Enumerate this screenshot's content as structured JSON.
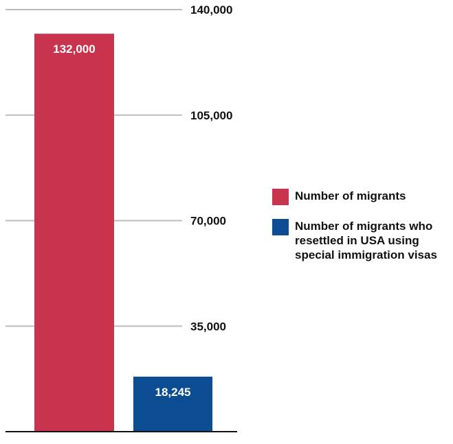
{
  "chart_data": {
    "type": "bar",
    "title": "",
    "xlabel": "",
    "ylabel": "",
    "categories": [
      "Number of migrants",
      "Number of migrants who resettled in USA using special immigration visas"
    ],
    "values": [
      132000,
      18245
    ],
    "data_labels": [
      "132,000",
      "18,245"
    ],
    "colors": [
      "#c8334d",
      "#0c4c92"
    ],
    "ylim": [
      0,
      140000
    ],
    "yticks": [
      35000,
      70000,
      105000,
      140000
    ],
    "ytick_labels": [
      "35,000",
      "70,000",
      "105,000",
      "140,000"
    ],
    "grid": true,
    "legend_placement": "right",
    "legend": [
      {
        "label": "Number of migrants",
        "color": "#c8334d"
      },
      {
        "label": "Number of migrants who resettled in USA using special immigration visas",
        "color": "#0c4c92"
      }
    ]
  }
}
